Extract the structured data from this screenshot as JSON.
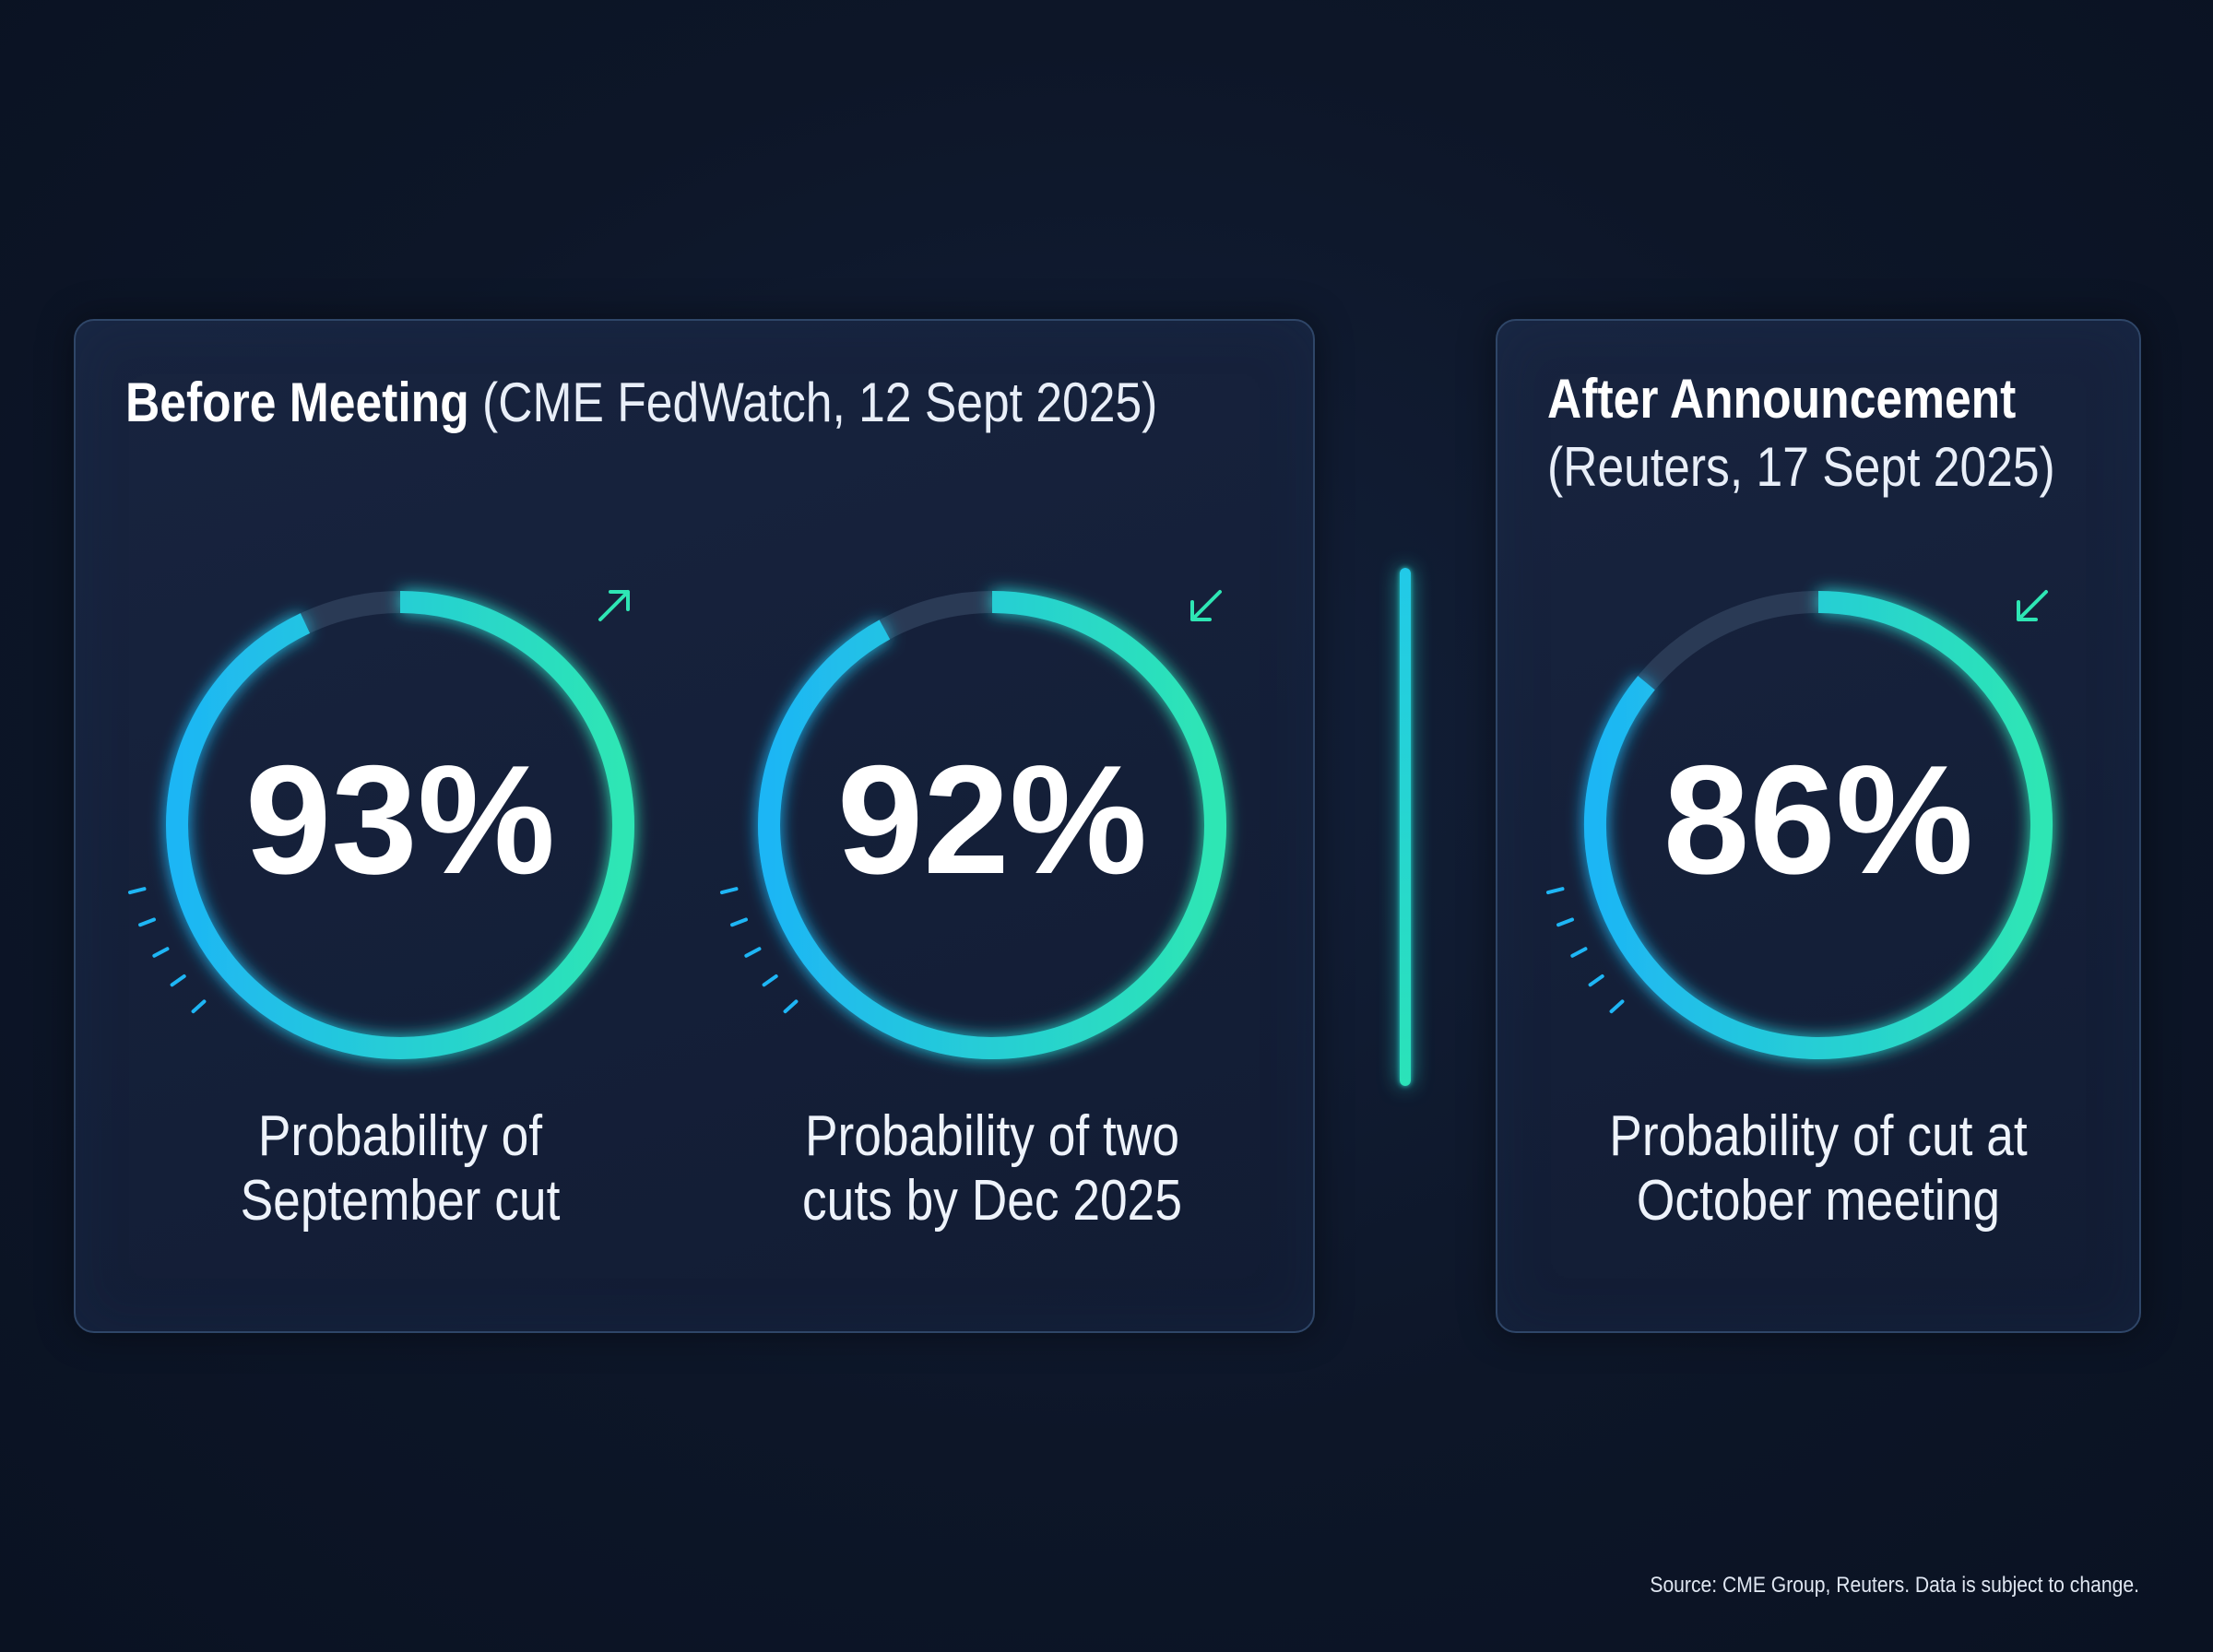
{
  "colors": {
    "background": "#0d1628",
    "panel": "#16223c",
    "panel_border": "#2f4668",
    "arc_start": "#1eb6f5",
    "arc_end": "#2ee6b4",
    "track": "#2a3a55",
    "text": "#ffffff"
  },
  "panels": {
    "before": {
      "title_bold": "Before Meeting",
      "title_light": "(CME FedWatch, 12 Sept 2025)"
    },
    "after": {
      "title_bold": "After Announcement",
      "title_light": "(Reuters, 17 Sept 2025)"
    }
  },
  "gauges": [
    {
      "value_text": "93%",
      "label_line1": "Probability of",
      "label_line2": "September cut",
      "trend_icon": "arrow-up-right-icon"
    },
    {
      "value_text": "92%",
      "label_line1": "Probability of two",
      "label_line2": "cuts by Dec 2025",
      "trend_icon": "arrow-down-left-icon"
    },
    {
      "value_text": "86%",
      "label_line1": "Probability of cut at",
      "label_line2": "October meeting",
      "trend_icon": "arrow-down-left-icon"
    }
  ],
  "chart_data": {
    "type": "gauge",
    "categories": [
      "Probability of September cut",
      "Probability of two cuts by Dec 2025",
      "Probability of cut at October meeting"
    ],
    "values": [
      93,
      92,
      86
    ],
    "unit": "%",
    "ylim": [
      0,
      100
    ]
  },
  "footnote": "Source: CME Group, Reuters. Data is subject to change."
}
